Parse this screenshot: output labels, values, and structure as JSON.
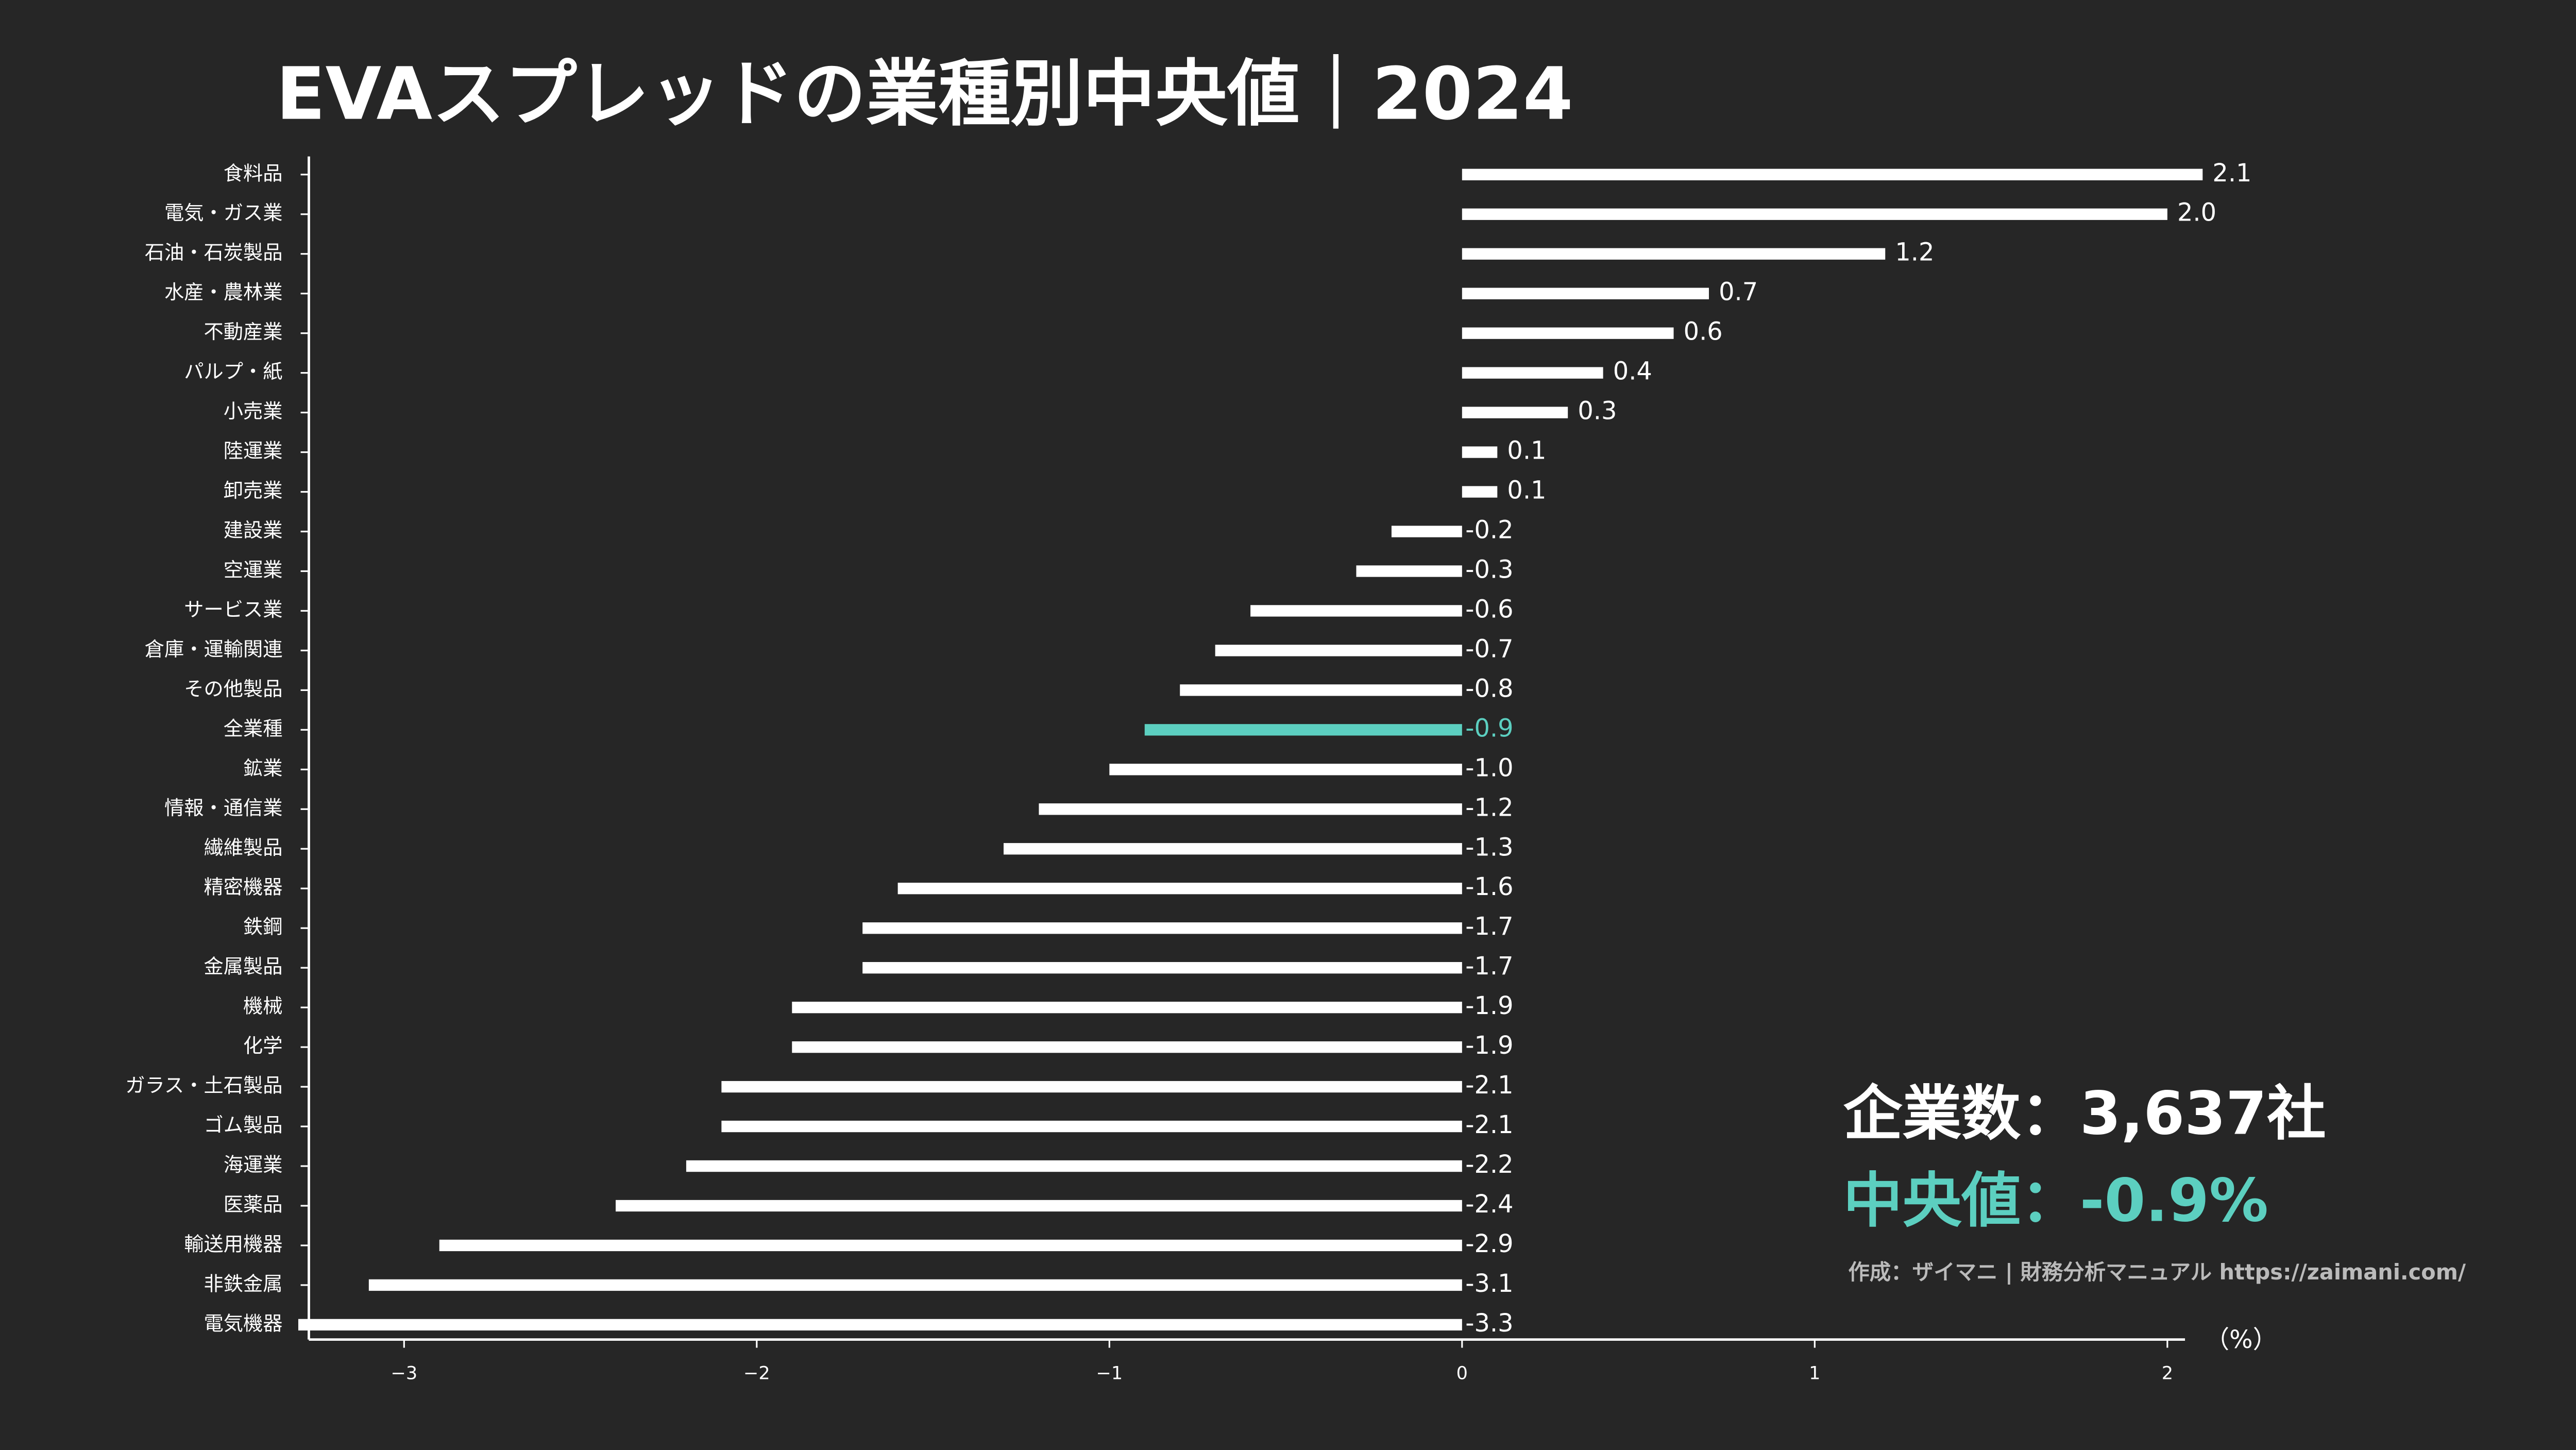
{
  "chart_data": {
    "type": "barh",
    "title": "EVAスプレッドの業種別中央値｜2024",
    "x_label": "（%）",
    "categories": [
      "食料品",
      "電気・ガス業",
      "石油・石炭製品",
      "水産・農林業",
      "不動産業",
      "パルプ・紙",
      "小売業",
      "陸運業",
      "卸売業",
      "建設業",
      "空運業",
      "サービス業",
      "倉庫・運輸関連",
      "その他製品",
      "全業種",
      "鉱業",
      "情報・通信業",
      "繊維製品",
      "精密機器",
      "鉄鋼",
      "金属製品",
      "機械",
      "化学",
      "ガラス・土石製品",
      "ゴム製品",
      "海運業",
      "医薬品",
      "輸送用機器",
      "非鉄金属",
      "電気機器"
    ],
    "values": [
      2.1,
      2.0,
      1.2,
      0.7,
      0.6,
      0.4,
      0.3,
      0.1,
      0.1,
      -0.2,
      -0.3,
      -0.6,
      -0.7,
      -0.8,
      -0.9,
      -1.0,
      -1.2,
      -1.3,
      -1.6,
      -1.7,
      -1.7,
      -1.9,
      -1.9,
      -2.1,
      -2.1,
      -2.2,
      -2.4,
      -2.9,
      -3.1,
      -3.3
    ],
    "value_labels": [
      "2.1",
      "2.0",
      "1.2",
      "0.7",
      "0.6",
      "0.4",
      "0.3",
      "0.1",
      "0.1",
      "-0.2",
      "-0.3",
      "-0.6",
      "-0.7",
      "-0.8",
      "-0.9",
      "-1.0",
      "-1.2",
      "-1.3",
      "-1.6",
      "-1.7",
      "-1.7",
      "-1.9",
      "-1.9",
      "-2.1",
      "-2.1",
      "-2.2",
      "-2.4",
      "-2.9",
      "-3.1",
      "-3.3"
    ],
    "colors": [
      "#ffffff",
      "#ffffff",
      "#ffffff",
      "#ffffff",
      "#ffffff",
      "#ffffff",
      "#ffffff",
      "#ffffff",
      "#ffffff",
      "#ffffff",
      "#ffffff",
      "#ffffff",
      "#ffffff",
      "#ffffff",
      "#5ccfc0",
      "#ffffff",
      "#ffffff",
      "#ffffff",
      "#ffffff",
      "#ffffff",
      "#ffffff",
      "#ffffff",
      "#ffffff",
      "#ffffff",
      "#ffffff",
      "#ffffff",
      "#ffffff",
      "#ffffff",
      "#ffffff",
      "#ffffff"
    ],
    "xlim": [
      -3.27,
      2.05
    ],
    "xticks": [
      {
        "value": -3,
        "label": "−3"
      },
      {
        "value": -2,
        "label": "−2"
      },
      {
        "value": -1,
        "label": "−1"
      },
      0,
      1,
      2
    ],
    "annotations": [
      "企業数：3,637社",
      "中央値：-0.9%",
      "作成：ザイマニ | 財務分析マニュアル https://zaimani.com/"
    ],
    "annotation_colors": [
      "#ffffff",
      "#5ccfc0",
      "#bbbbbb"
    ]
  }
}
